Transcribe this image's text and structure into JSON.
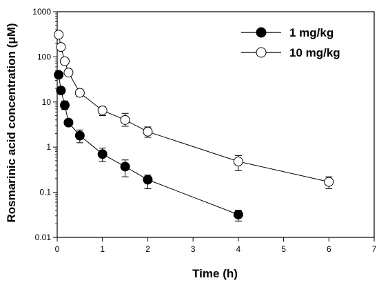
{
  "chart_data": {
    "type": "scatter",
    "title": "",
    "xlabel": "Time (h)",
    "ylabel": "Rosmarinic acid concentration (μM)",
    "xlim": [
      0,
      7
    ],
    "ylim": [
      0.01,
      1000
    ],
    "yscale": "log",
    "x_ticks": [
      0,
      1,
      2,
      3,
      4,
      5,
      6,
      7
    ],
    "x_tick_labels": [
      "0",
      "1",
      "2",
      "3",
      "4",
      "5",
      "6",
      "7"
    ],
    "y_ticks": [
      0.01,
      0.1,
      1,
      10,
      100,
      1000
    ],
    "y_tick_labels": [
      "0.01",
      "0.1",
      "1",
      "10",
      "100",
      "1000"
    ],
    "grid": false,
    "legend_position": "top-right",
    "series": [
      {
        "name": "1 mg/kg",
        "marker": "filled-circle",
        "color": "#000000",
        "x": [
          0.033,
          0.083,
          0.167,
          0.25,
          0.5,
          1,
          1.5,
          2,
          4
        ],
        "y": [
          40,
          18,
          8.5,
          3.5,
          1.8,
          0.7,
          0.37,
          0.19,
          0.032
        ],
        "err_upper": [
          null,
          null,
          10.5,
          null,
          2.4,
          0.95,
          0.52,
          0.24,
          0.04
        ],
        "err_lower": [
          null,
          null,
          6.8,
          null,
          1.25,
          0.48,
          0.22,
          0.12,
          0.023
        ]
      },
      {
        "name": "10 mg/kg",
        "marker": "open-circle",
        "color": "#000000",
        "x": [
          0.033,
          0.083,
          0.167,
          0.25,
          0.5,
          1,
          1.5,
          2,
          4,
          6
        ],
        "y": [
          310,
          165,
          80,
          45,
          16,
          6.5,
          4,
          2.2,
          0.48,
          0.17
        ],
        "err_upper": [
          null,
          null,
          null,
          null,
          19,
          7.8,
          5.6,
          2.8,
          0.65,
          0.22
        ],
        "err_lower": [
          null,
          null,
          null,
          null,
          13,
          5.0,
          2.9,
          1.65,
          0.3,
          0.12
        ]
      }
    ]
  }
}
